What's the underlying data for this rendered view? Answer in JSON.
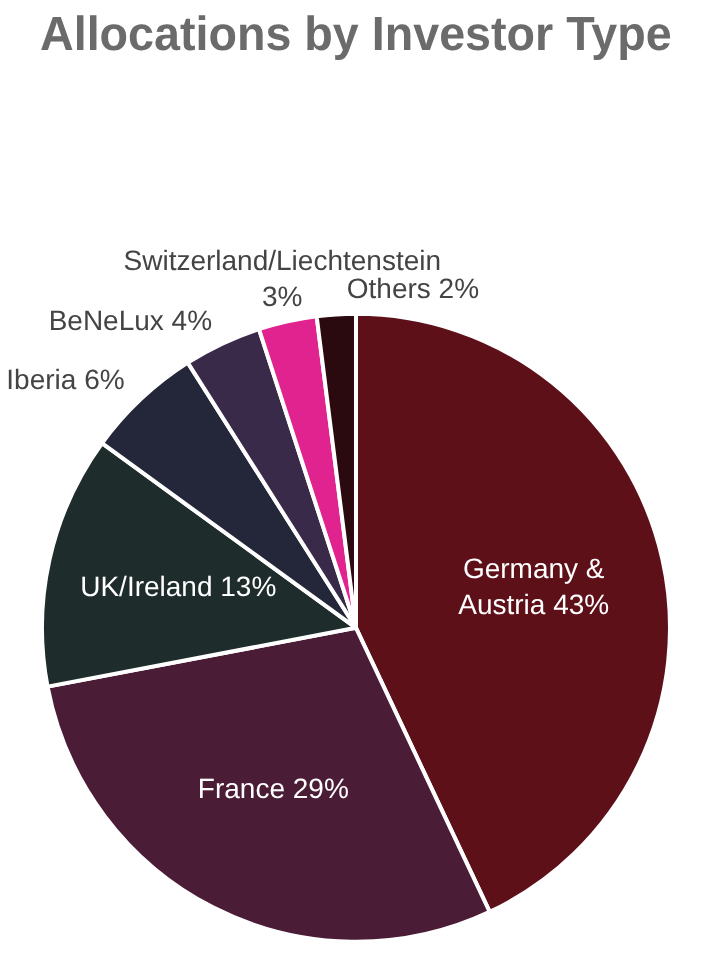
{
  "chart_data": {
    "type": "pie",
    "title": "Allocations by Investor Type",
    "categories": [
      "Germany & Austria",
      "France",
      "UK/Ireland",
      "Iberia",
      "BeNeLux",
      "Switzerland/Liechtenstein",
      "Others"
    ],
    "values": [
      43,
      29,
      13,
      6,
      4,
      3,
      2
    ],
    "colors": [
      "#5e1019",
      "#4b1c35",
      "#1f2c2c",
      "#232739",
      "#3a2a4a",
      "#e0238f",
      "#2b0a0f"
    ],
    "value_labels": [
      "43%",
      "29%",
      "13%",
      "6%",
      "4%",
      "3%",
      "2%"
    ],
    "legend": false
  }
}
